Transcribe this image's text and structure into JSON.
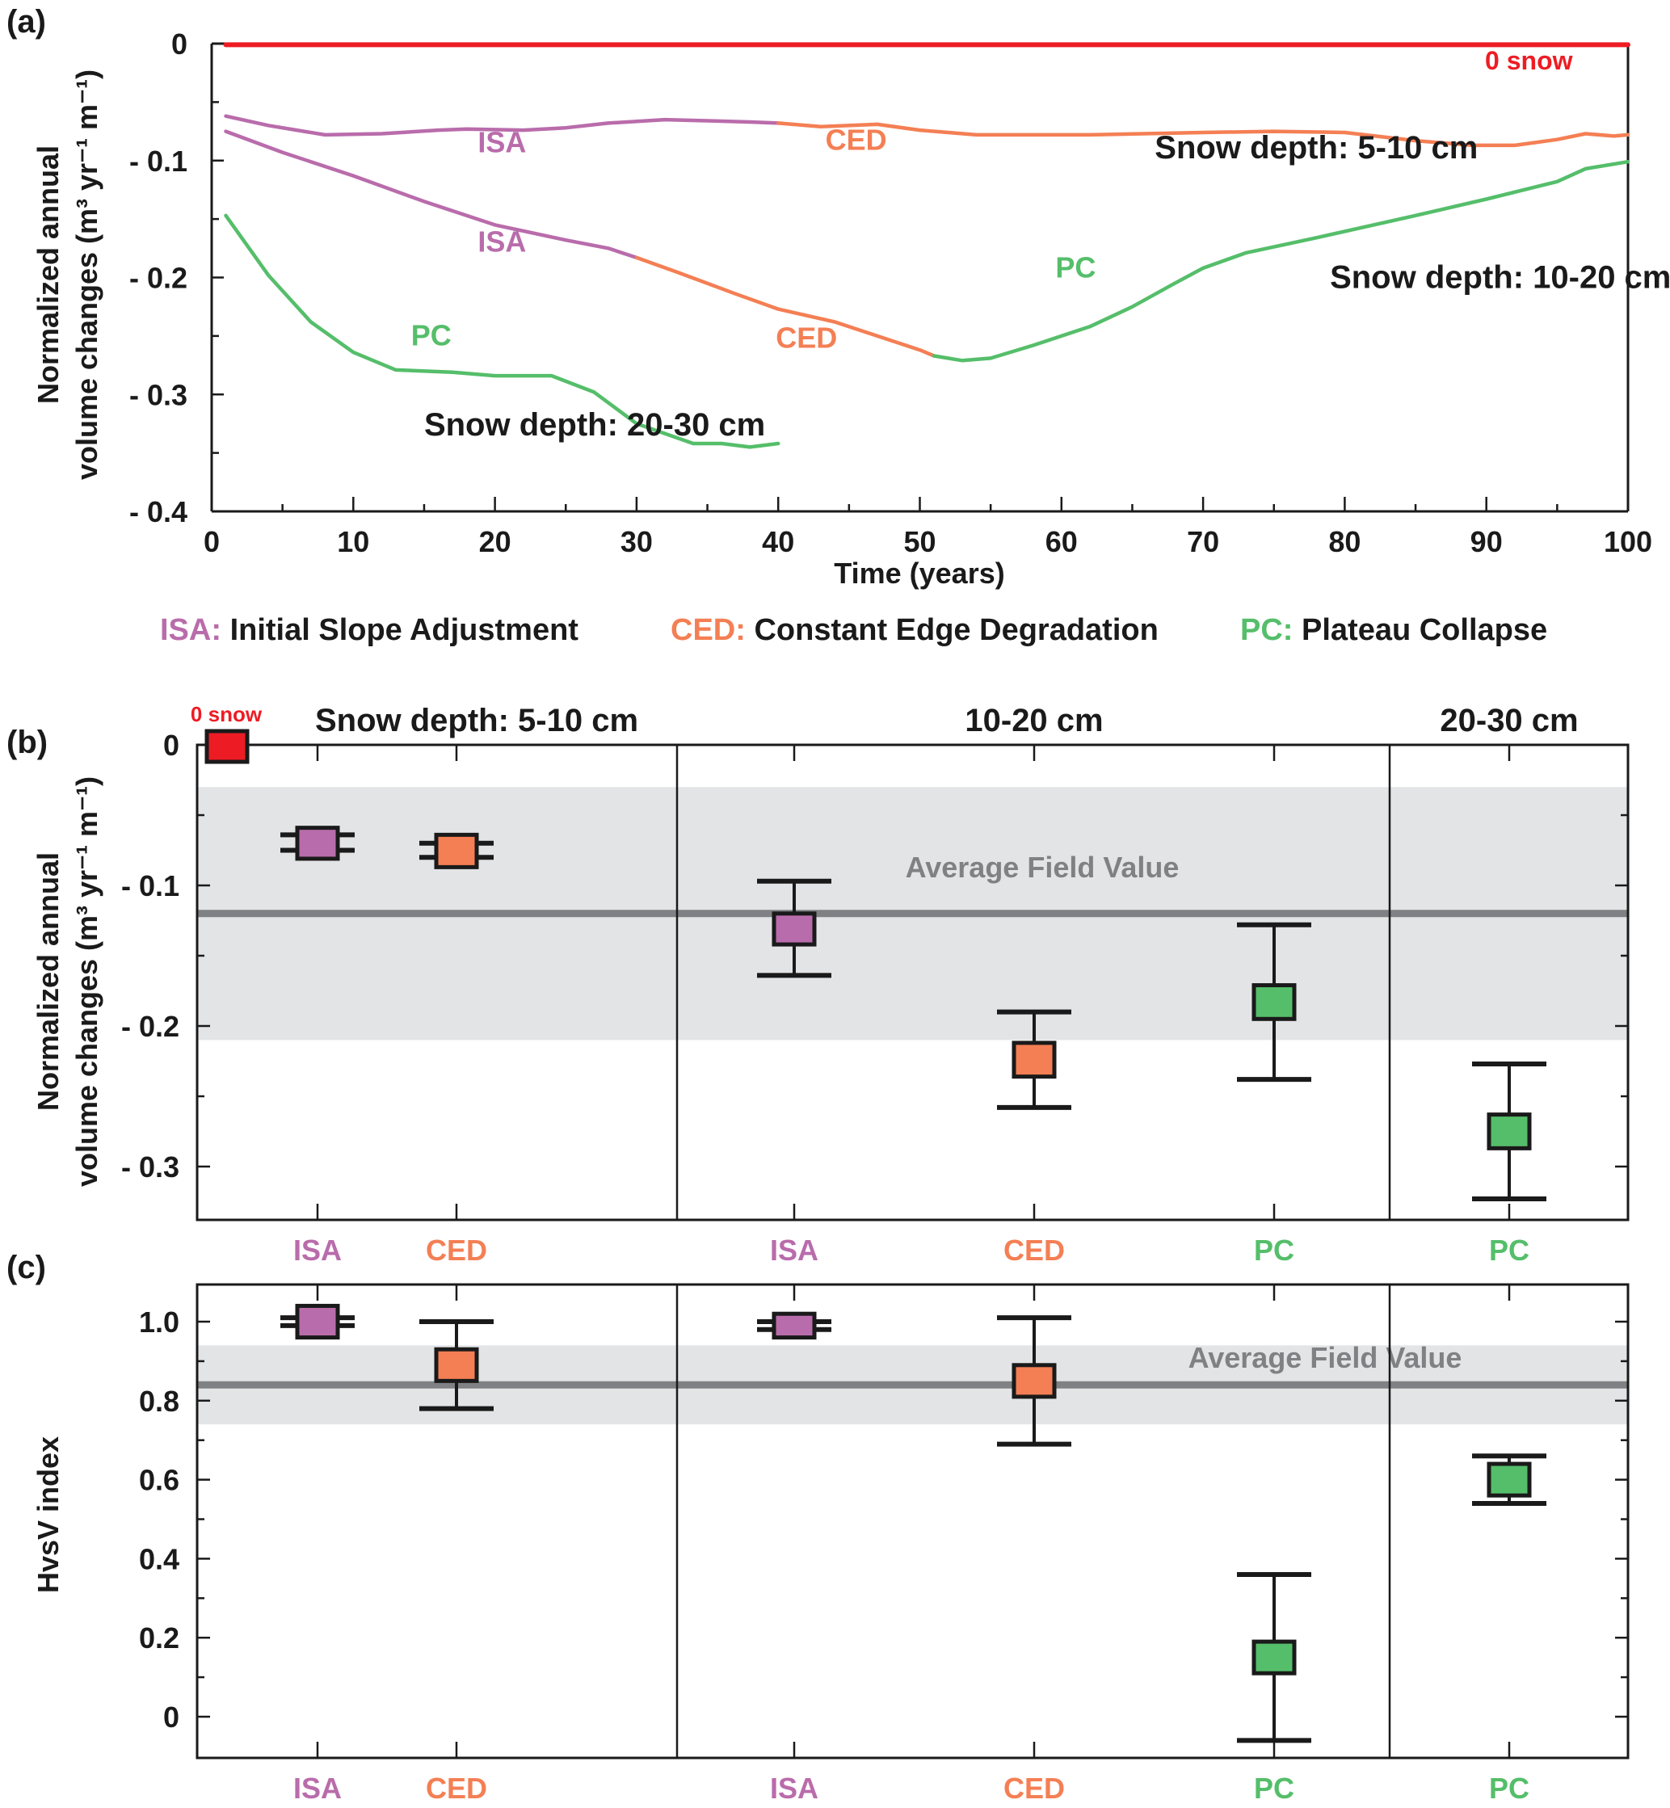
{
  "colors": {
    "ISA": "#b96cab",
    "CED": "#f47f54",
    "PC": "#55be6a",
    "zero_snow": "#ed1c24",
    "avg_line": "#808184",
    "avg_band": "#e3e4e6",
    "axis": "#1a1a1a"
  },
  "legend": [
    {
      "abbr": "ISA:",
      "name": "Initial Slope Adjustment",
      "key": "ISA"
    },
    {
      "abbr": "CED:",
      "name": "Constant Edge Degradation",
      "key": "CED"
    },
    {
      "abbr": "PC:",
      "name": "Plateau Collapse",
      "key": "PC"
    }
  ],
  "chart_data": [
    {
      "panel": "(a)",
      "type": "line",
      "xlabel": "Time (years)",
      "ylabel_line1": "Normalized annual",
      "ylabel_line2": "volume changes (m³ yr⁻¹ m⁻¹)",
      "xlim": [
        0,
        100
      ],
      "ylim": [
        -0.4,
        0
      ],
      "xticks": [
        0,
        10,
        20,
        30,
        40,
        50,
        60,
        70,
        80,
        90,
        100
      ],
      "yticks": [
        0,
        -0.1,
        -0.2,
        -0.3,
        -0.4
      ],
      "ytick_labels": [
        "0",
        "- 0.1",
        "- 0.2",
        "- 0.3",
        "- 0.4"
      ],
      "grid": false,
      "series": [
        {
          "name": "0 snow",
          "color_key": "zero_snow",
          "segments": [
            {
              "phase": "none",
              "x": [
                1,
                100
              ],
              "y": [
                -0.001,
                -0.001
              ]
            }
          ]
        },
        {
          "name": "Snow depth: 5-10 cm",
          "segments": [
            {
              "phase": "ISA",
              "x": [
                1,
                4,
                8,
                12,
                16,
                18,
                22,
                25,
                28,
                32,
                35,
                38,
                40
              ],
              "y": [
                -0.062,
                -0.07,
                -0.078,
                -0.077,
                -0.074,
                -0.073,
                -0.074,
                -0.072,
                -0.068,
                -0.065,
                -0.066,
                -0.067,
                -0.068
              ]
            },
            {
              "phase": "CED",
              "x": [
                40,
                43,
                47,
                50,
                54,
                58,
                62,
                70,
                75,
                80,
                85,
                89,
                92,
                95,
                97,
                99,
                100
              ],
              "y": [
                -0.068,
                -0.071,
                -0.069,
                -0.074,
                -0.078,
                -0.078,
                -0.078,
                -0.076,
                -0.075,
                -0.076,
                -0.083,
                -0.087,
                -0.087,
                -0.082,
                -0.077,
                -0.079,
                -0.078
              ]
            }
          ]
        },
        {
          "name": "Snow depth: 10-20 cm",
          "segments": [
            {
              "phase": "ISA",
              "x": [
                1,
                5,
                10,
                15,
                20,
                25,
                28,
                30
              ],
              "y": [
                -0.075,
                -0.093,
                -0.113,
                -0.135,
                -0.155,
                -0.168,
                -0.175,
                -0.183
              ]
            },
            {
              "phase": "CED",
              "x": [
                30,
                33,
                37,
                40,
                44,
                47,
                50,
                51
              ],
              "y": [
                -0.183,
                -0.196,
                -0.214,
                -0.227,
                -0.238,
                -0.25,
                -0.262,
                -0.267
              ]
            },
            {
              "phase": "PC",
              "x": [
                51,
                53,
                55,
                58,
                62,
                65,
                68,
                70,
                73,
                78,
                85,
                90,
                95,
                97,
                100
              ],
              "y": [
                -0.267,
                -0.271,
                -0.269,
                -0.258,
                -0.242,
                -0.225,
                -0.205,
                -0.192,
                -0.179,
                -0.166,
                -0.147,
                -0.133,
                -0.118,
                -0.107,
                -0.101
              ]
            }
          ]
        },
        {
          "name": "Snow depth: 20-30 cm",
          "segments": [
            {
              "phase": "PC",
              "x": [
                1,
                4,
                7,
                10,
                13,
                17,
                20,
                24,
                27,
                30,
                34,
                36,
                38,
                40
              ],
              "y": [
                -0.147,
                -0.198,
                -0.238,
                -0.264,
                -0.279,
                -0.281,
                -0.284,
                -0.284,
                -0.298,
                -0.325,
                -0.342,
                -0.342,
                -0.345,
                -0.342
              ]
            }
          ]
        }
      ],
      "annotations": [
        {
          "text": "0 snow",
          "x": 93,
          "y": -0.022,
          "color_key": "zero_snow",
          "size": "small"
        },
        {
          "text": "ISA",
          "x": 20.5,
          "y": -0.093,
          "color_key": "ISA"
        },
        {
          "text": "CED",
          "x": 45.5,
          "y": -0.091,
          "color_key": "CED"
        },
        {
          "text": "Snow depth: 5-10 cm",
          "x": 78,
          "y": -0.098,
          "color_key": "axis"
        },
        {
          "text": "ISA",
          "x": 20.5,
          "y": -0.178,
          "color_key": "ISA"
        },
        {
          "text": "PC",
          "x": 61,
          "y": -0.2,
          "color_key": "PC"
        },
        {
          "text": "Snow depth: 10-20 cm",
          "x": 91,
          "y": -0.209,
          "color_key": "axis"
        },
        {
          "text": "PC",
          "x": 15.5,
          "y": -0.258,
          "color_key": "PC"
        },
        {
          "text": "CED",
          "x": 42,
          "y": -0.26,
          "color_key": "CED"
        },
        {
          "text": "Snow depth: 20-30 cm",
          "x": 15,
          "y": -0.335,
          "color_key": "axis",
          "anchor": "start"
        }
      ]
    },
    {
      "panel": "(b)",
      "type": "scatter",
      "ylabel_line1": "Normalized annual",
      "ylabel_line2": "volume changes (m³ yr⁻¹ m⁻¹)",
      "ylim": [
        -0.34,
        0
      ],
      "yticks": [
        0,
        -0.1,
        -0.2,
        -0.3
      ],
      "ytick_labels": [
        "0",
        "- 0.1",
        "- 0.2",
        "- 0.3"
      ],
      "minor_yticks": [
        -0.05,
        -0.15,
        -0.25
      ],
      "groups": [
        {
          "label": "Snow depth: 5-10 cm",
          "categories": [
            "ISA",
            "CED"
          ]
        },
        {
          "label": "10-20 cm",
          "categories": [
            "ISA",
            "CED",
            "PC"
          ]
        },
        {
          "label": "20-30 cm",
          "categories": [
            "PC"
          ]
        }
      ],
      "zero_snow": {
        "label": "0 snow",
        "value": 0
      },
      "average_field_value": {
        "label": "Average Field Value",
        "value": -0.12,
        "band": [
          -0.21,
          -0.03
        ]
      },
      "points": [
        {
          "group": 0,
          "category": "ISA",
          "box": [
            -0.081,
            -0.059
          ],
          "err": [
            -0.075,
            -0.064
          ]
        },
        {
          "group": 0,
          "category": "CED",
          "box": [
            -0.087,
            -0.064
          ],
          "err": [
            -0.08,
            -0.07
          ]
        },
        {
          "group": 1,
          "category": "ISA",
          "box": [
            -0.142,
            -0.12
          ],
          "err": [
            -0.164,
            -0.097
          ]
        },
        {
          "group": 1,
          "category": "CED",
          "box": [
            -0.236,
            -0.212
          ],
          "err": [
            -0.258,
            -0.19
          ]
        },
        {
          "group": 1,
          "category": "PC",
          "box": [
            -0.195,
            -0.171
          ],
          "err": [
            -0.238,
            -0.128
          ]
        },
        {
          "group": 2,
          "category": "PC",
          "box": [
            -0.287,
            -0.263
          ],
          "err": [
            -0.323,
            -0.227
          ]
        }
      ]
    },
    {
      "panel": "(c)",
      "type": "scatter",
      "ylabel": "HvsV index",
      "ylim": [
        -0.1,
        1.1
      ],
      "yticks": [
        1.0,
        0.8,
        0.6,
        0.4,
        0.2,
        0
      ],
      "ytick_labels": [
        "1.0",
        "0.8",
        "0.6",
        "0.4",
        "0.2",
        "0"
      ],
      "minor_yticks": [
        0.9,
        0.7,
        0.5,
        0.3,
        0.1
      ],
      "groups": [
        {
          "categories": [
            "ISA",
            "CED"
          ]
        },
        {
          "categories": [
            "ISA",
            "CED",
            "PC"
          ]
        },
        {
          "categories": [
            "PC"
          ]
        }
      ],
      "average_field_value": {
        "label": "Average Field  Value",
        "value": 0.84,
        "band": [
          0.74,
          0.94
        ]
      },
      "points": [
        {
          "group": 0,
          "category": "ISA",
          "box": [
            0.96,
            1.04
          ],
          "err": [
            0.99,
            1.01
          ]
        },
        {
          "group": 0,
          "category": "CED",
          "box": [
            0.85,
            0.93
          ],
          "err": [
            0.78,
            1.0
          ]
        },
        {
          "group": 1,
          "category": "ISA",
          "box": [
            0.96,
            1.02
          ],
          "err": [
            0.98,
            1.0
          ]
        },
        {
          "group": 1,
          "category": "CED",
          "box": [
            0.81,
            0.89
          ],
          "err": [
            0.69,
            1.01
          ]
        },
        {
          "group": 1,
          "category": "PC",
          "box": [
            0.11,
            0.19
          ],
          "err": [
            -0.06,
            0.36
          ]
        },
        {
          "group": 2,
          "category": "PC",
          "box": [
            0.56,
            0.64
          ],
          "err": [
            0.54,
            0.66
          ]
        }
      ]
    }
  ]
}
